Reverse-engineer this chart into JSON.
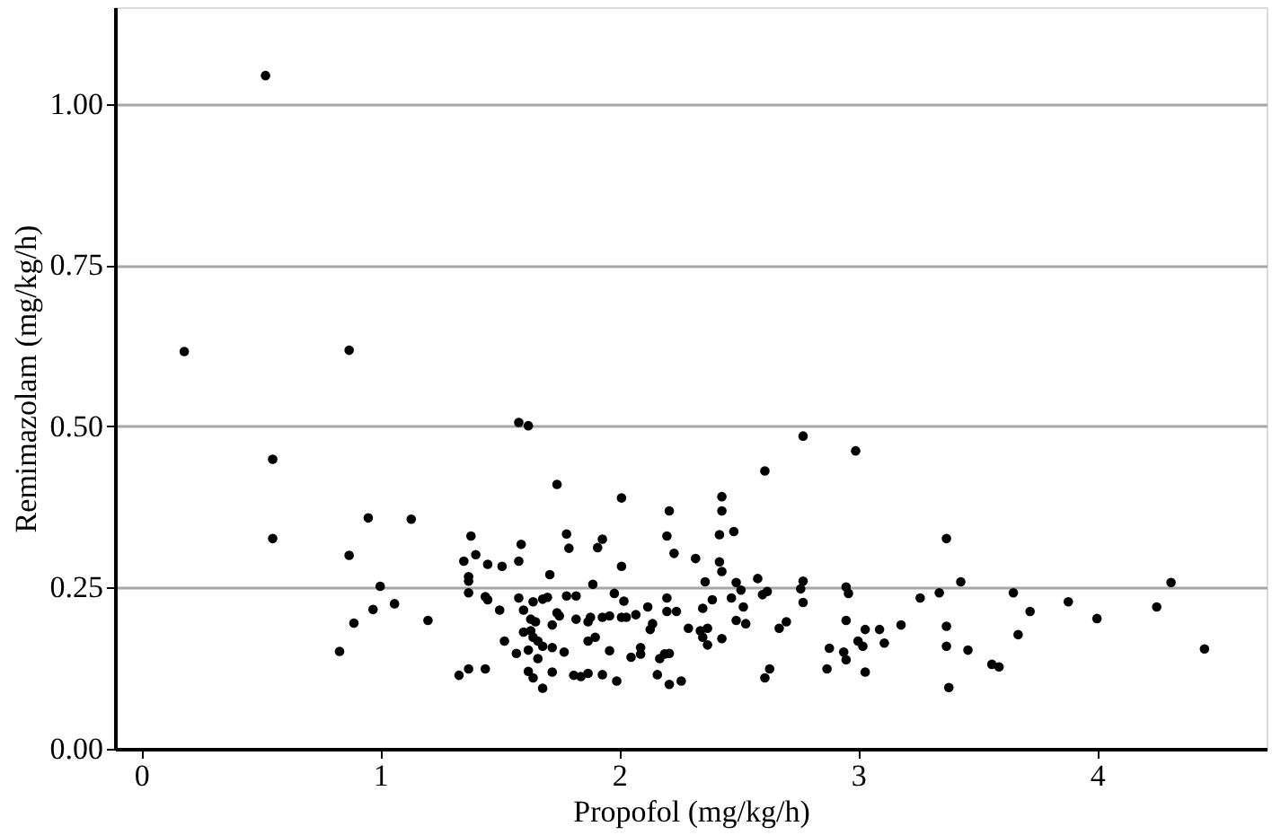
{
  "chart_data": {
    "type": "scatter",
    "xlabel": "Propofol (mg/kg/h)",
    "ylabel": "Remimazolam (mg/kg/h)",
    "xlim": [
      -0.11,
      4.71
    ],
    "xticks": [
      0,
      1,
      2,
      3,
      4
    ],
    "ylim": [
      0,
      1.15
    ],
    "yticks": [
      {
        "value": 0,
        "label": "0.00"
      },
      {
        "value": 0.25,
        "label": "0.25"
      },
      {
        "value": 0.5,
        "label": "0.50"
      },
      {
        "value": 0.75,
        "label": "0.75"
      },
      {
        "value": 1,
        "label": "1.00"
      }
    ],
    "grid": "y",
    "marker": "circle",
    "series": [
      {
        "color": "#000000",
        "x": [
          0.52,
          0.18,
          0.87,
          0.55,
          0.55,
          0.95,
          1.13,
          0.87,
          1.0,
          0.97,
          1.06,
          0.89,
          1.2,
          0.83,
          1.58,
          1.62,
          1.38,
          1.4,
          1.35,
          1.45,
          1.51,
          1.59,
          1.58,
          1.37,
          1.37,
          1.37,
          1.44,
          1.45,
          1.5,
          1.58,
          1.71,
          1.6,
          1.64,
          1.68,
          1.7,
          1.63,
          1.6,
          1.64,
          1.52,
          1.57,
          1.62,
          1.68,
          1.66,
          1.72,
          1.72,
          1.62,
          1.64,
          1.68,
          1.72,
          1.33,
          1.37,
          1.44,
          1.74,
          2.77,
          2.99,
          2.61,
          2.01,
          2.43,
          2.43,
          2.21,
          2.42,
          2.48,
          2.2,
          2.23,
          2.32,
          2.42,
          2.43,
          1.78,
          1.79,
          1.91,
          1.93,
          2.01,
          1.89,
          2.36,
          2.49,
          2.58,
          2.77,
          2.76,
          2.95,
          2.96,
          1.78,
          1.82,
          1.98,
          2.02,
          2.2,
          2.2,
          2.24,
          2.12,
          2.39,
          2.35,
          2.47,
          2.51,
          2.52,
          2.6,
          2.62,
          2.77,
          1.74,
          1.75,
          1.82,
          1.88,
          1.87,
          1.93,
          1.96,
          2.01,
          2.03,
          2.07,
          2.14,
          2.13,
          2.49,
          2.53,
          2.67,
          2.7,
          2.29,
          2.34,
          2.37,
          2.35,
          2.43,
          2.37,
          1.65,
          1.63,
          1.66,
          1.77,
          1.87,
          1.9,
          1.96,
          2.09,
          2.05,
          2.09,
          2.17,
          2.19,
          2.21,
          2.16,
          2.21,
          2.26,
          1.99,
          1.93,
          1.87,
          1.84,
          1.81,
          2.61,
          2.63,
          2.87,
          2.88,
          2.94,
          2.95,
          2.95,
          3.0,
          3.02,
          3.03,
          3.03,
          3.09,
          3.11,
          3.37,
          3.43,
          3.26,
          3.34,
          3.65,
          3.72,
          3.88,
          4.0,
          4.25,
          4.31,
          4.45,
          3.18,
          3.37,
          3.37,
          3.46,
          3.67,
          3.56,
          3.59,
          3.38
        ],
        "values": [
          1.044,
          0.616,
          0.618,
          0.449,
          0.326,
          0.358,
          0.356,
          0.3,
          0.252,
          0.216,
          0.225,
          0.195,
          0.199,
          0.151,
          0.506,
          0.501,
          0.33,
          0.301,
          0.291,
          0.286,
          0.283,
          0.317,
          0.291,
          0.267,
          0.26,
          0.242,
          0.236,
          0.231,
          0.215,
          0.234,
          0.27,
          0.215,
          0.228,
          0.232,
          0.235,
          0.201,
          0.181,
          0.173,
          0.167,
          0.148,
          0.153,
          0.159,
          0.14,
          0.157,
          0.192,
          0.12,
          0.11,
          0.094,
          0.119,
          0.114,
          0.124,
          0.124,
          0.41,
          0.485,
          0.462,
          0.431,
          0.389,
          0.391,
          0.369,
          0.369,
          0.332,
          0.337,
          0.33,
          0.303,
          0.295,
          0.29,
          0.275,
          0.333,
          0.311,
          0.312,
          0.325,
          0.283,
          0.255,
          0.259,
          0.258,
          0.264,
          0.26,
          0.248,
          0.251,
          0.241,
          0.237,
          0.237,
          0.241,
          0.229,
          0.234,
          0.213,
          0.213,
          0.22,
          0.231,
          0.218,
          0.234,
          0.246,
          0.22,
          0.239,
          0.244,
          0.227,
          0.211,
          0.206,
          0.201,
          0.204,
          0.197,
          0.204,
          0.206,
          0.204,
          0.204,
          0.208,
          0.194,
          0.185,
          0.199,
          0.194,
          0.187,
          0.197,
          0.187,
          0.183,
          0.187,
          0.173,
          0.171,
          0.161,
          0.197,
          0.183,
          0.167,
          0.15,
          0.167,
          0.173,
          0.152,
          0.157,
          0.142,
          0.147,
          0.14,
          0.147,
          0.148,
          0.115,
          0.1,
          0.105,
          0.105,
          0.115,
          0.117,
          0.112,
          0.114,
          0.11,
          0.124,
          0.124,
          0.156,
          0.15,
          0.138,
          0.199,
          0.167,
          0.159,
          0.119,
          0.185,
          0.185,
          0.164,
          0.326,
          0.259,
          0.234,
          0.242,
          0.242,
          0.213,
          0.228,
          0.202,
          0.22,
          0.258,
          0.155,
          0.192,
          0.19,
          0.159,
          0.153,
          0.177,
          0.131,
          0.127,
          0.095
        ]
      }
    ]
  }
}
